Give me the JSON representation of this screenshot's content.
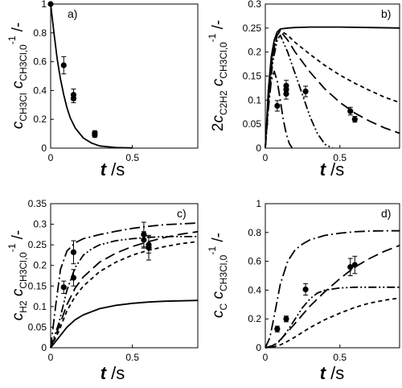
{
  "chart_data": [
    {
      "id": "a",
      "type": "line",
      "panel_label": "a)",
      "xlabel": "t /s",
      "ylabel": "cCH3Cl cCH3Cl,0-1 /-",
      "xlim": [
        0,
        0.9
      ],
      "ylim": [
        0,
        1
      ],
      "x_ticks": [
        0,
        0.5
      ],
      "y_ticks": [
        0,
        0.2,
        0.4,
        0.6,
        0.8,
        1
      ],
      "y_tick_labels": [
        "0",
        "0.2",
        "0.4",
        "0.6",
        "0.8",
        "1"
      ],
      "grid": false,
      "series": [
        {
          "style": "solid",
          "x": [
            0,
            0.02,
            0.04,
            0.06,
            0.08,
            0.1,
            0.12,
            0.15,
            0.2,
            0.25,
            0.3,
            0.4,
            0.5
          ],
          "y": [
            1,
            0.8,
            0.62,
            0.48,
            0.37,
            0.28,
            0.21,
            0.14,
            0.07,
            0.035,
            0.015,
            0.004,
            0.001
          ]
        }
      ],
      "points": [
        {
          "x": 0.0,
          "y": 1.0,
          "err": 0.0
        },
        {
          "x": 0.08,
          "y": 0.575,
          "err": 0.06
        },
        {
          "x": 0.14,
          "y": 0.37,
          "err": 0.04
        },
        {
          "x": 0.14,
          "y": 0.345,
          "err": 0.03
        },
        {
          "x": 0.27,
          "y": 0.105,
          "err": 0.015
        },
        {
          "x": 0.27,
          "y": 0.09,
          "err": 0.015
        }
      ]
    },
    {
      "id": "b",
      "type": "line",
      "panel_label": "b)",
      "xlabel": "t /s",
      "ylabel": "2cC2H2 cCH3Cl,0-1 /-",
      "xlim": [
        0,
        0.9
      ],
      "ylim": [
        0,
        0.3
      ],
      "x_ticks": [
        0,
        0.5
      ],
      "y_ticks": [
        0,
        0.05,
        0.1,
        0.15,
        0.2,
        0.25,
        0.3
      ],
      "y_tick_labels": [
        "0",
        "0.05",
        "0.1",
        "0.15",
        "0.2",
        "0.25",
        "0.3"
      ],
      "grid": false,
      "series": [
        {
          "style": "solid",
          "x": [
            0,
            0.02,
            0.04,
            0.06,
            0.08,
            0.1,
            0.15,
            0.2,
            0.3,
            0.5,
            0.7,
            0.9
          ],
          "y": [
            0,
            0.12,
            0.19,
            0.225,
            0.242,
            0.248,
            0.25,
            0.251,
            0.252,
            0.252,
            0.251,
            0.25
          ]
        },
        {
          "style": "short-dash",
          "x": [
            0,
            0.02,
            0.05,
            0.08,
            0.1,
            0.15,
            0.2,
            0.3,
            0.4,
            0.5,
            0.6,
            0.7,
            0.8,
            0.9
          ],
          "y": [
            0,
            0.1,
            0.2,
            0.235,
            0.245,
            0.235,
            0.22,
            0.195,
            0.172,
            0.152,
            0.135,
            0.12,
            0.106,
            0.095
          ]
        },
        {
          "style": "long-dash",
          "x": [
            0,
            0.02,
            0.05,
            0.08,
            0.1,
            0.15,
            0.2,
            0.3,
            0.4,
            0.5,
            0.6,
            0.7,
            0.8,
            0.9
          ],
          "y": [
            0,
            0.1,
            0.195,
            0.235,
            0.244,
            0.225,
            0.2,
            0.158,
            0.123,
            0.095,
            0.073,
            0.056,
            0.042,
            0.031
          ]
        },
        {
          "style": "dash-dot-dot",
          "x": [
            0,
            0.02,
            0.05,
            0.08,
            0.1,
            0.15,
            0.2,
            0.25,
            0.3,
            0.35,
            0.4,
            0.45
          ],
          "y": [
            0,
            0.09,
            0.18,
            0.225,
            0.235,
            0.2,
            0.155,
            0.11,
            0.065,
            0.03,
            0.008,
            0.0
          ]
        },
        {
          "style": "dash-dot",
          "x": [
            0,
            0.02,
            0.04,
            0.06,
            0.08,
            0.1,
            0.12,
            0.14,
            0.16,
            0.18
          ],
          "y": [
            0,
            0.08,
            0.14,
            0.16,
            0.14,
            0.1,
            0.06,
            0.03,
            0.01,
            0.0
          ]
        }
      ],
      "points": [
        {
          "x": 0.08,
          "y": 0.088,
          "err": 0.011
        },
        {
          "x": 0.14,
          "y": 0.113,
          "err": 0.011
        },
        {
          "x": 0.14,
          "y": 0.122,
          "err": 0.011
        },
        {
          "x": 0.14,
          "y": 0.13,
          "err": 0.011
        },
        {
          "x": 0.27,
          "y": 0.118,
          "err": 0.011
        },
        {
          "x": 0.57,
          "y": 0.077,
          "err": 0.008
        },
        {
          "x": 0.6,
          "y": 0.06,
          "err": 0.006
        }
      ]
    },
    {
      "id": "c",
      "type": "line",
      "panel_label": "c)",
      "xlabel": "t /s",
      "ylabel": "cH2 cCH3Cl,0-1 /-",
      "xlim": [
        0,
        0.9
      ],
      "ylim": [
        0,
        0.35
      ],
      "x_ticks": [
        0,
        0.5
      ],
      "y_ticks": [
        0,
        0.05,
        0.1,
        0.15,
        0.2,
        0.25,
        0.3,
        0.35
      ],
      "y_tick_labels": [
        "0",
        "0.05",
        "0.1",
        "0.15",
        "0.2",
        "0.25",
        "0.3",
        "0.35"
      ],
      "grid": false,
      "series": [
        {
          "style": "solid",
          "x": [
            0,
            0.05,
            0.1,
            0.15,
            0.2,
            0.3,
            0.4,
            0.5,
            0.6,
            0.7,
            0.8,
            0.9
          ],
          "y": [
            0,
            0.025,
            0.05,
            0.068,
            0.08,
            0.095,
            0.103,
            0.108,
            0.111,
            0.113,
            0.114,
            0.115
          ]
        },
        {
          "style": "short-dash",
          "x": [
            0,
            0.05,
            0.1,
            0.15,
            0.2,
            0.3,
            0.4,
            0.5,
            0.6,
            0.7,
            0.8,
            0.9
          ],
          "y": [
            0,
            0.04,
            0.09,
            0.125,
            0.15,
            0.185,
            0.208,
            0.225,
            0.237,
            0.246,
            0.253,
            0.258
          ]
        },
        {
          "style": "long-dash",
          "x": [
            0,
            0.05,
            0.1,
            0.15,
            0.2,
            0.3,
            0.4,
            0.5,
            0.6,
            0.7,
            0.8,
            0.9
          ],
          "y": [
            0,
            0.05,
            0.105,
            0.145,
            0.172,
            0.208,
            0.23,
            0.246,
            0.258,
            0.268,
            0.276,
            0.282
          ]
        },
        {
          "style": "dash-dot-dot",
          "x": [
            0,
            0.05,
            0.1,
            0.15,
            0.2,
            0.25,
            0.3,
            0.4,
            0.5,
            0.6,
            0.7,
            0.8,
            0.9
          ],
          "y": [
            0,
            0.06,
            0.14,
            0.195,
            0.225,
            0.24,
            0.25,
            0.26,
            0.265,
            0.268,
            0.27,
            0.27,
            0.27
          ]
        },
        {
          "style": "dash-dot",
          "x": [
            0,
            0.03,
            0.06,
            0.1,
            0.15,
            0.2,
            0.3,
            0.4,
            0.5,
            0.6,
            0.7,
            0.8,
            0.9
          ],
          "y": [
            0,
            0.1,
            0.19,
            0.235,
            0.255,
            0.265,
            0.275,
            0.283,
            0.29,
            0.295,
            0.299,
            0.301,
            0.303
          ]
        }
      ],
      "points": [
        {
          "x": 0.08,
          "y": 0.147,
          "err": 0.015
        },
        {
          "x": 0.14,
          "y": 0.17,
          "err": 0.02
        },
        {
          "x": 0.14,
          "y": 0.232,
          "err": 0.028
        },
        {
          "x": 0.57,
          "y": 0.262,
          "err": 0.02
        },
        {
          "x": 0.57,
          "y": 0.275,
          "err": 0.03
        },
        {
          "x": 0.6,
          "y": 0.25,
          "err": 0.02
        },
        {
          "x": 0.6,
          "y": 0.243,
          "err": 0.03
        }
      ]
    },
    {
      "id": "d",
      "type": "line",
      "panel_label": "d)",
      "xlabel": "t /s",
      "ylabel": "cC cCH3Cl,0-1 /-",
      "xlim": [
        0,
        0.9
      ],
      "ylim": [
        0,
        1
      ],
      "x_ticks": [
        0,
        0.5
      ],
      "y_ticks": [
        0,
        0.2,
        0.4,
        0.6,
        0.8,
        1
      ],
      "y_tick_labels": [
        "0",
        "0.2",
        "0.4",
        "0.6",
        "0.8",
        "1"
      ],
      "grid": false,
      "series": [
        {
          "style": "short-dash",
          "x": [
            0,
            0.05,
            0.1,
            0.15,
            0.2,
            0.3,
            0.4,
            0.5,
            0.6,
            0.7,
            0.8,
            0.9
          ],
          "y": [
            0,
            0.005,
            0.02,
            0.045,
            0.075,
            0.14,
            0.195,
            0.24,
            0.28,
            0.31,
            0.33,
            0.345
          ]
        },
        {
          "style": "long-dash",
          "x": [
            0,
            0.05,
            0.1,
            0.15,
            0.2,
            0.3,
            0.4,
            0.5,
            0.6,
            0.7,
            0.8,
            0.9
          ],
          "y": [
            0,
            0.015,
            0.055,
            0.11,
            0.17,
            0.29,
            0.39,
            0.48,
            0.56,
            0.62,
            0.67,
            0.71
          ]
        },
        {
          "style": "dash-dot-dot",
          "x": [
            0,
            0.05,
            0.1,
            0.15,
            0.2,
            0.25,
            0.3,
            0.35,
            0.4,
            0.5,
            0.6,
            0.7,
            0.8,
            0.9
          ],
          "y": [
            0,
            0.01,
            0.05,
            0.12,
            0.2,
            0.28,
            0.34,
            0.38,
            0.4,
            0.415,
            0.42,
            0.42,
            0.42,
            0.42
          ]
        },
        {
          "style": "dash-dot",
          "x": [
            0,
            0.03,
            0.06,
            0.1,
            0.15,
            0.2,
            0.25,
            0.3,
            0.4,
            0.5,
            0.6,
            0.7,
            0.8,
            0.9
          ],
          "y": [
            0,
            0.07,
            0.22,
            0.44,
            0.6,
            0.68,
            0.72,
            0.75,
            0.78,
            0.795,
            0.805,
            0.81,
            0.812,
            0.812
          ]
        }
      ],
      "points": [
        {
          "x": 0.08,
          "y": 0.13,
          "err": 0.02
        },
        {
          "x": 0.14,
          "y": 0.2,
          "err": 0.02
        },
        {
          "x": 0.27,
          "y": 0.405,
          "err": 0.04
        },
        {
          "x": 0.57,
          "y": 0.56,
          "err": 0.06
        },
        {
          "x": 0.6,
          "y": 0.575,
          "err": 0.06
        }
      ]
    }
  ]
}
